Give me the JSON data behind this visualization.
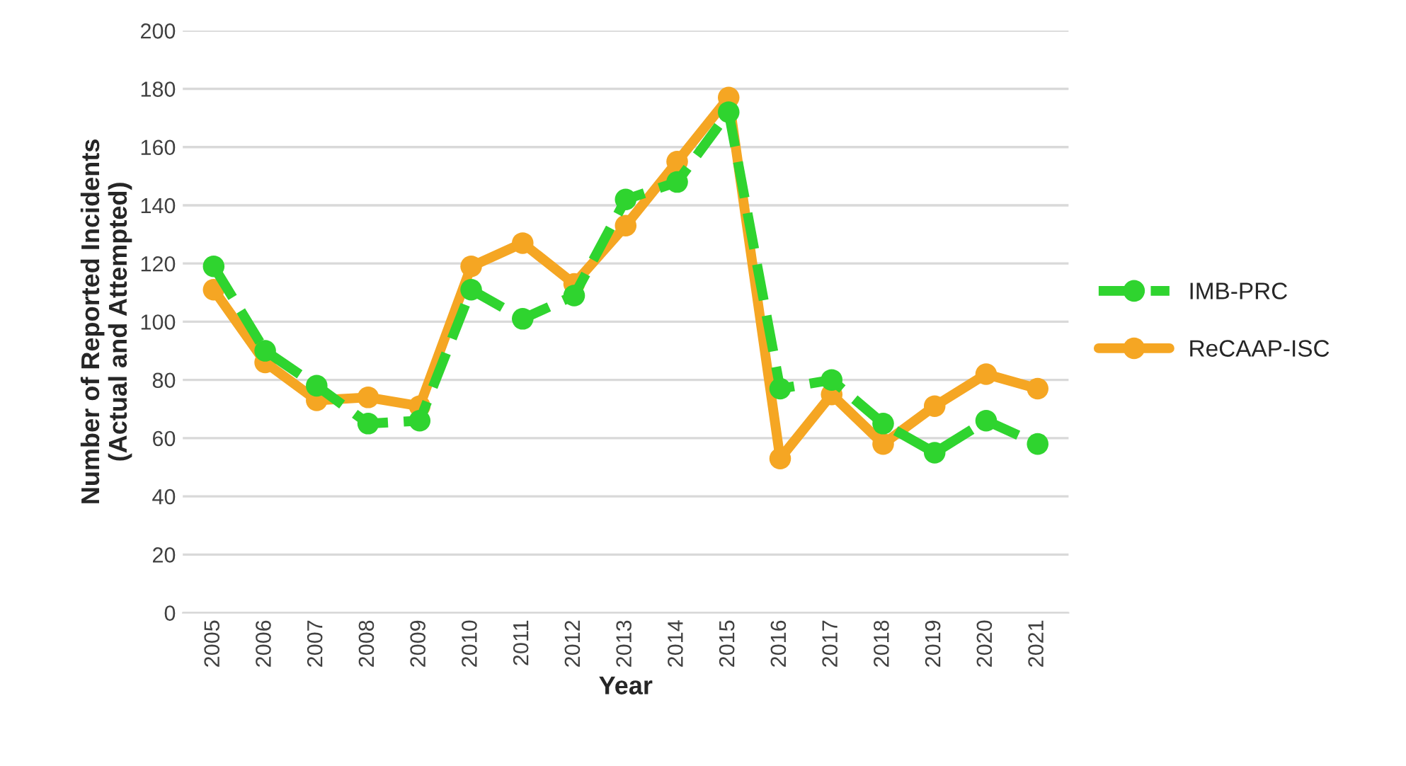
{
  "chart_data": {
    "type": "line",
    "xlabel": "Year",
    "ylabel": "Number of Reported Incidents\n(Actual and Attempted)",
    "categories": [
      "2005",
      "2006",
      "2007",
      "2008",
      "2009",
      "2010",
      "2011",
      "2012",
      "2013",
      "2014",
      "2015",
      "2016",
      "2017",
      "2018",
      "2019",
      "2020",
      "2021"
    ],
    "series": [
      {
        "name": "IMB-PRC",
        "color": "#2fd42f",
        "line_style": "dashed",
        "values": [
          119,
          90,
          78,
          65,
          66,
          111,
          101,
          109,
          142,
          148,
          172,
          77,
          80,
          65,
          55,
          66,
          58
        ]
      },
      {
        "name": "ReCAAP-ISC",
        "color": "#f5a623",
        "line_style": "solid",
        "values": [
          111,
          86,
          73,
          74,
          71,
          119,
          127,
          113,
          133,
          155,
          177,
          53,
          75,
          58,
          71,
          82,
          77
        ]
      }
    ],
    "ylim": [
      0,
      200
    ],
    "yticks": [
      0,
      20,
      40,
      60,
      80,
      100,
      120,
      140,
      160,
      180,
      200
    ],
    "grid": "y",
    "legend": "right",
    "marker": "circle"
  }
}
